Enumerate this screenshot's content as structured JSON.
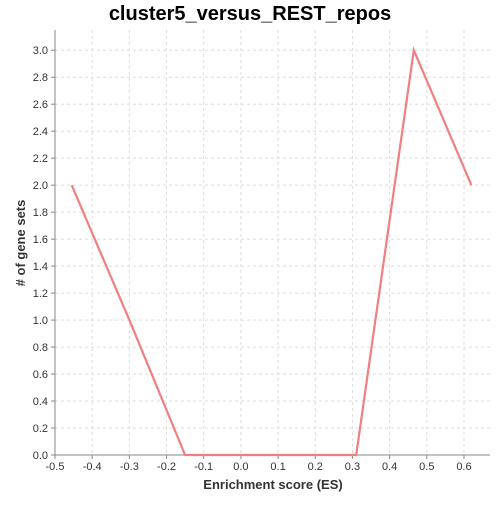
{
  "chart_data": {
    "type": "line",
    "title": "cluster5_versus_REST_repos",
    "xlabel": "Enrichment score (ES)",
    "ylabel": "# of gene sets",
    "xlim": [
      -0.5,
      0.67
    ],
    "ylim": [
      0.0,
      3.15
    ],
    "x_ticks": [
      -0.5,
      -0.4,
      -0.3,
      -0.2,
      -0.1,
      0.0,
      0.1,
      0.2,
      0.3,
      0.4,
      0.5,
      0.6
    ],
    "x_tick_labels": [
      "-0.5",
      "-0.4",
      "-0.3",
      "-0.2",
      "-0.1",
      "0.0",
      "0.1",
      "0.2",
      "0.3",
      "0.4",
      "0.5",
      "0.6"
    ],
    "y_ticks": [
      0.0,
      0.2,
      0.4,
      0.6,
      0.8,
      1.0,
      1.2,
      1.4,
      1.6,
      1.8,
      2.0,
      2.2,
      2.4,
      2.6,
      2.8,
      3.0
    ],
    "y_tick_labels": [
      "0.0",
      "0.2",
      "0.4",
      "0.6",
      "0.8",
      "1.0",
      "1.2",
      "1.4",
      "1.6",
      "1.8",
      "2.0",
      "2.2",
      "2.4",
      "2.6",
      "2.8",
      "3.0"
    ],
    "grid": true,
    "series": [
      {
        "color": "#f08080",
        "x": [
          -0.455,
          -0.3,
          -0.15,
          0.31,
          0.465,
          0.62
        ],
        "y": [
          2.0,
          1.0,
          0.0,
          0.0,
          3.0,
          2.0
        ]
      }
    ]
  }
}
